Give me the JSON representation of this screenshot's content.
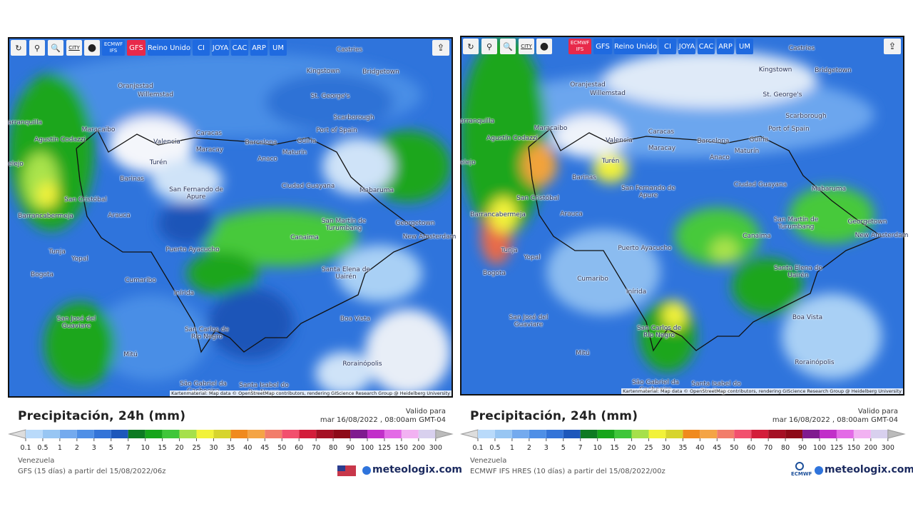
{
  "panels": [
    {
      "toolbar": [
        "CITY",
        "ECMWF IFS",
        "GFS",
        "Reino Unido",
        "CI",
        "JOYA",
        "CAC",
        "ARP",
        "UM"
      ],
      "cities": [
        "Castries",
        "Kingstown",
        "Bridgetown",
        "St. George's",
        "Oranjestad",
        "Willemstad",
        "Scarborough",
        "Port of Spain",
        "Maracaibo",
        "Caracas",
        "Barcelona",
        "Güiria",
        "Valencia",
        "Maracay",
        "Maturín",
        "Anaco",
        "Turén",
        "Barinas",
        "Ciudad Guayana",
        "Mabaruma",
        "San Fernando de Apure",
        "San Cristóbal",
        "Arauca",
        "Georgetown",
        "New Amsterdam",
        "Barrancabermeja",
        "San Martín de Turumbang",
        "Canaima",
        "Puerto Ayacucho",
        "Tunja",
        "Yopal",
        "Bogota",
        "Santa Elena de Uairén",
        "Cumaribo",
        "Inírida",
        "San José del Guaviare",
        "Boa Vista",
        "San Carlos de Río Negro",
        "Mitú",
        "Rorainópolis",
        "São Gabriel da Cachoeira",
        "Santa Isabel do Rio Negro",
        "Agustín Codazzi",
        "arranquilla",
        "elejo"
      ],
      "attribution": "Kartenmaterial: Map data © OpenStreetMap contributors, rendering GIScience Research Group @ Heidelberg University",
      "legend": {
        "title": "Precipitación, 24h (mm)",
        "valid_label": "Valido para",
        "valid_date": "mar 16/08/2022 , 08:00am GMT-04",
        "scale": [
          0.1,
          0.5,
          1,
          2,
          3,
          5,
          7,
          10,
          15,
          20,
          25,
          30,
          35,
          40,
          45,
          50,
          60,
          70,
          80,
          90,
          100,
          125,
          150,
          200,
          300
        ]
      },
      "region": "Venezuela",
      "source": "GFS (15 días) a partir del 15/08/2022/06z",
      "logo": "meteologix.com"
    },
    {
      "toolbar": [
        "CITY",
        "ECMWF IFS",
        "GFS",
        "Reino Unido",
        "CI",
        "JOYA",
        "CAC",
        "ARP",
        "UM"
      ],
      "cities": [
        "Castries",
        "Kingstown",
        "Bridgetown",
        "St. George's",
        "Oranjestad",
        "Willemstad",
        "Scarborough",
        "Port of Spain",
        "Maracaibo",
        "Caracas",
        "Barcelona",
        "Güiria",
        "Valencia",
        "Maracay",
        "Maturín",
        "Anaco",
        "Turén",
        "Barinas",
        "Ciudad Guayana",
        "Mabaruma",
        "San Fernando de Apure",
        "San Cristóbal",
        "Arauca",
        "Georgetown",
        "New Amsterdam",
        "Barrancabermeja",
        "San Martín de Turumbang",
        "Canaima",
        "Puerto Ayacucho",
        "Tunja",
        "Yopal",
        "Bogota",
        "Santa Elena de Uairén",
        "Cumaribo",
        "Inírida",
        "San José del Guaviare",
        "Boa Vista",
        "San Carlos de Río Negro",
        "Mitú",
        "Rorainópolis",
        "São Gabriel da Cachoeira",
        "Santa Isabel do Rio Negro",
        "Agustín Codazzi",
        "arranquilla",
        "elejo"
      ],
      "attribution": "Kartenmaterial: Map data © OpenStreetMap contributors, rendering GIScience Research Group @ Heidelberg University",
      "legend": {
        "title": "Precipitación, 24h (mm)",
        "valid_label": "Valido para",
        "valid_date": "mar 16/08/2022 , 08:00am GMT-04",
        "scale": [
          0.1,
          0.5,
          1,
          2,
          3,
          5,
          7,
          10,
          15,
          20,
          25,
          30,
          35,
          40,
          45,
          50,
          60,
          70,
          80,
          90,
          100,
          125,
          150,
          200,
          300
        ]
      },
      "region": "Venezuela",
      "source": "ECMWF IFS HRES (10 días) a partir del 15/08/2022/00z",
      "logo": "meteologix.com",
      "provider": "ECMWF"
    }
  ]
}
